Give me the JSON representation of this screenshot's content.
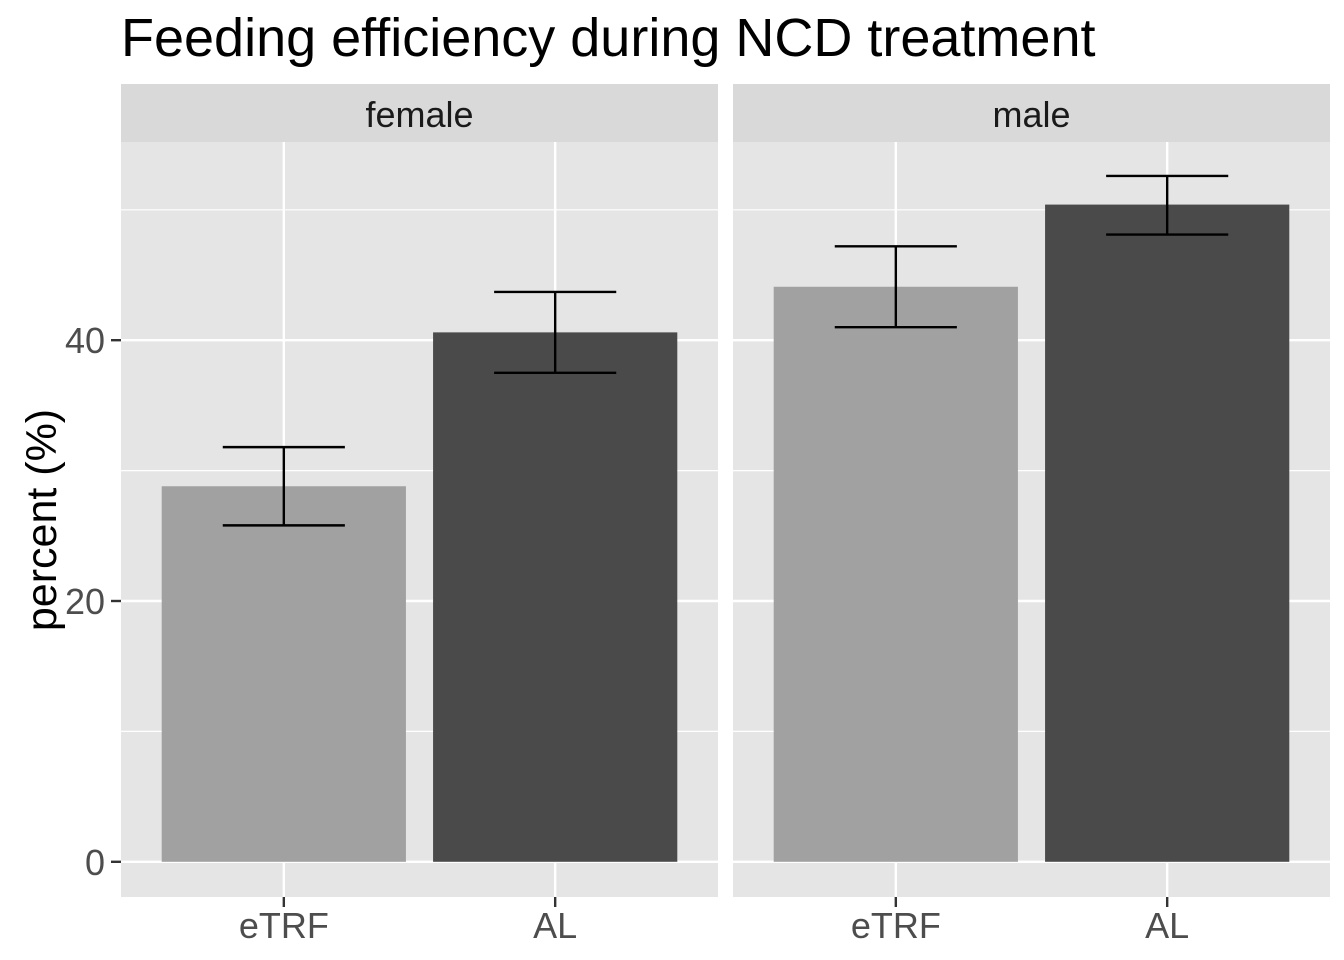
{
  "colors": {
    "panel_background": "#e5e5e5",
    "grid": "#ffffff",
    "strip_background": "#d9d9d9",
    "errorbar": "#000000"
  },
  "chart_data": {
    "type": "bar",
    "title": "Feeding efficiency during NCD treatment",
    "xlabel": "",
    "ylabel": "percent (%)",
    "ylim": [
      -2.7,
      55.2
    ],
    "yticks": [
      0,
      20,
      40
    ],
    "minor_yticks": [
      10,
      30,
      50
    ],
    "categories": [
      "eTRF",
      "AL"
    ],
    "category_colors": [
      "#a1a1a1",
      "#4a4a4a"
    ],
    "panels": [
      {
        "name": "female",
        "values": [
          28.8,
          40.6
        ],
        "error_low": [
          25.8,
          37.5
        ],
        "error_high": [
          31.8,
          43.7
        ]
      },
      {
        "name": "male",
        "values": [
          44.1,
          50.4
        ],
        "error_low": [
          41.0,
          48.1
        ],
        "error_high": [
          47.2,
          52.6
        ]
      }
    ]
  }
}
